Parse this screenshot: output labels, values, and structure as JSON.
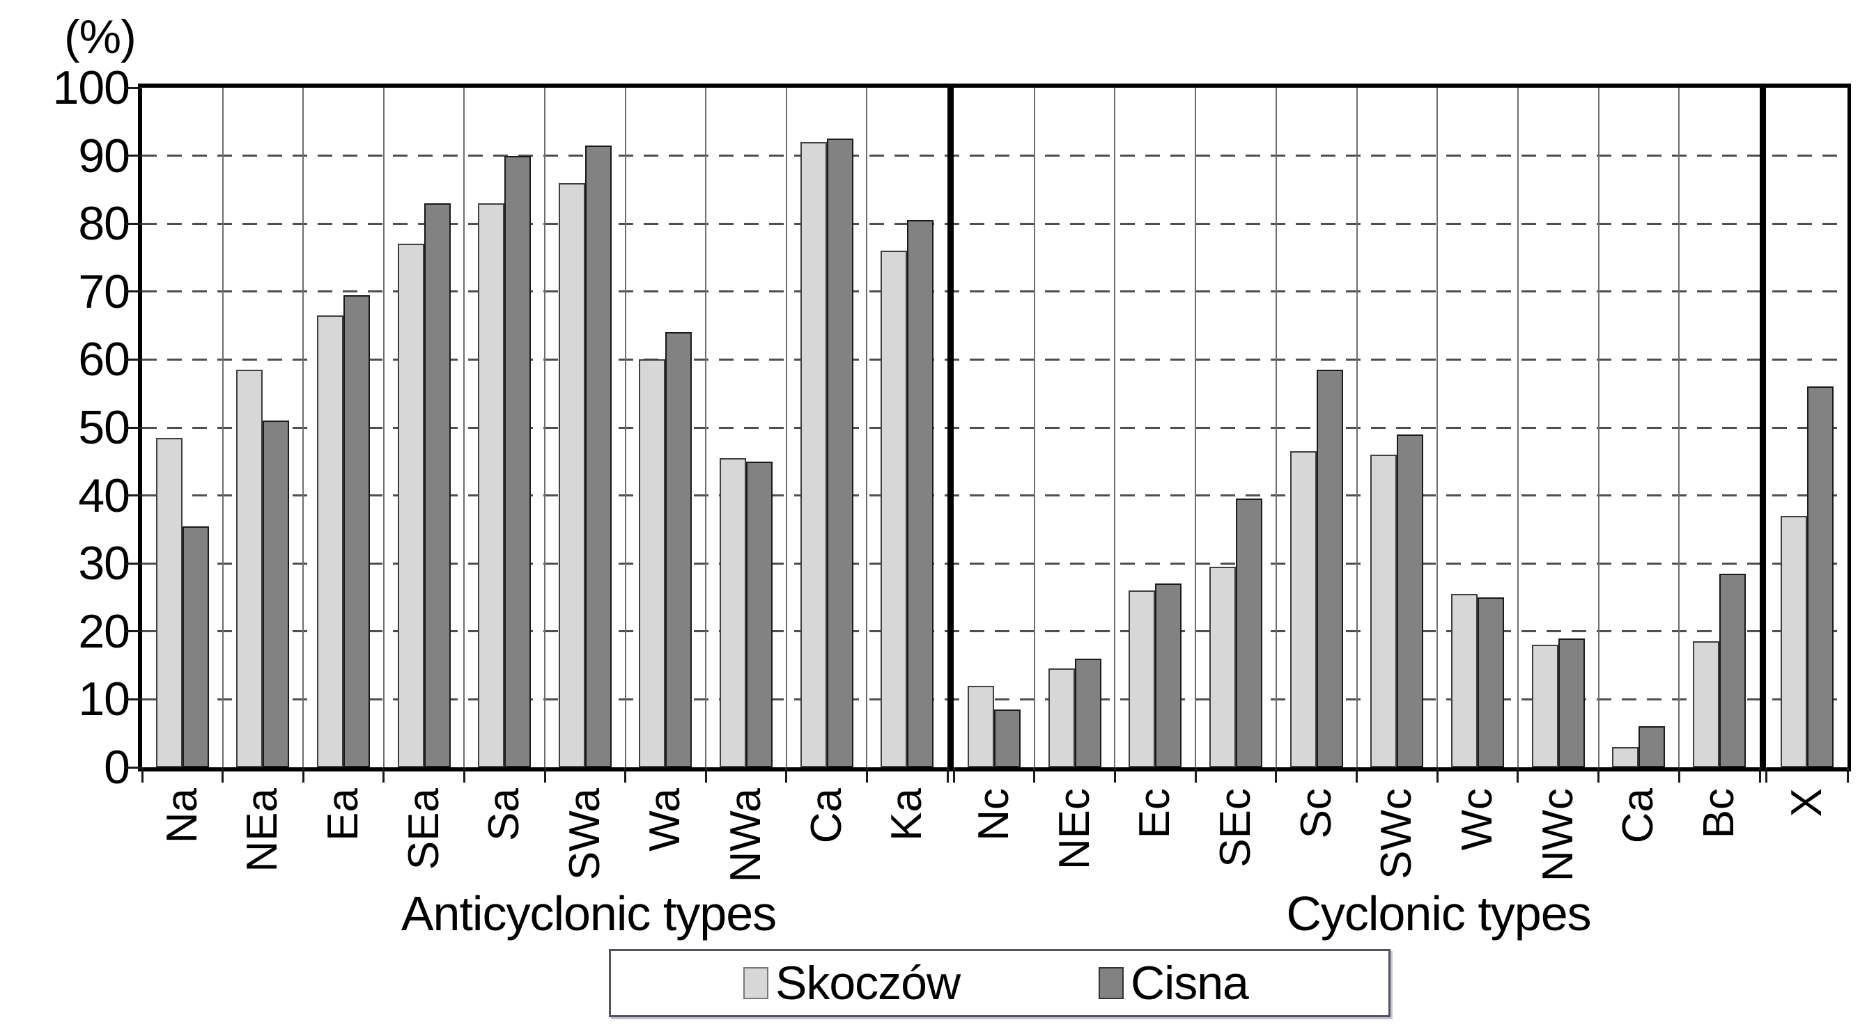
{
  "chart_data": {
    "type": "bar",
    "unit_label": "(%)",
    "ylim": [
      0,
      100
    ],
    "ytick_step": 10,
    "grid": {
      "horizontal": "dashed",
      "vertical_category_boundaries": true
    },
    "legend_position": "bottom-center",
    "series_meta": [
      {
        "name": "Skoczów",
        "fill": "#d7d7d7",
        "border": "#3f3f3f"
      },
      {
        "name": "Cisna",
        "fill": "#828282",
        "border": "#1a1a1a"
      }
    ],
    "sections": [
      {
        "axis_label": "Anticyclonic types",
        "categories": [
          "Na",
          "NEa",
          "Ea",
          "SEa",
          "Sa",
          "SWa",
          "Wa",
          "NWa",
          "Ca",
          "Ka"
        ],
        "series": [
          {
            "name": "Skoczów",
            "values": [
              48.5,
              58.5,
              66.5,
              77,
              83,
              86,
              60,
              45.5,
              92,
              76
            ]
          },
          {
            "name": "Cisna",
            "values": [
              35.5,
              51,
              69.5,
              83,
              90,
              91.5,
              64,
              45,
              92.5,
              80.5
            ]
          }
        ]
      },
      {
        "axis_label": "Cyclonic types",
        "categories": [
          "Nc",
          "NEc",
          "Ec",
          "SEc",
          "Sc",
          "SWc",
          "Wc",
          "NWc",
          "Ca",
          "Bc"
        ],
        "series": [
          {
            "name": "Skoczów",
            "values": [
              12,
              14.5,
              26,
              29.5,
              46.5,
              46,
              25.5,
              18,
              3,
              18.5
            ]
          },
          {
            "name": "Cisna",
            "values": [
              8.5,
              16,
              27,
              39.5,
              58.5,
              49,
              25,
              19,
              6,
              28.5
            ]
          }
        ]
      },
      {
        "axis_label": "",
        "categories": [
          "X"
        ],
        "series": [
          {
            "name": "Skoczów",
            "values": [
              37
            ]
          },
          {
            "name": "Cisna",
            "values": [
              56
            ]
          }
        ]
      }
    ]
  },
  "legend": {
    "items": [
      {
        "label": "Skoczów"
      },
      {
        "label": "Cisna"
      }
    ]
  }
}
